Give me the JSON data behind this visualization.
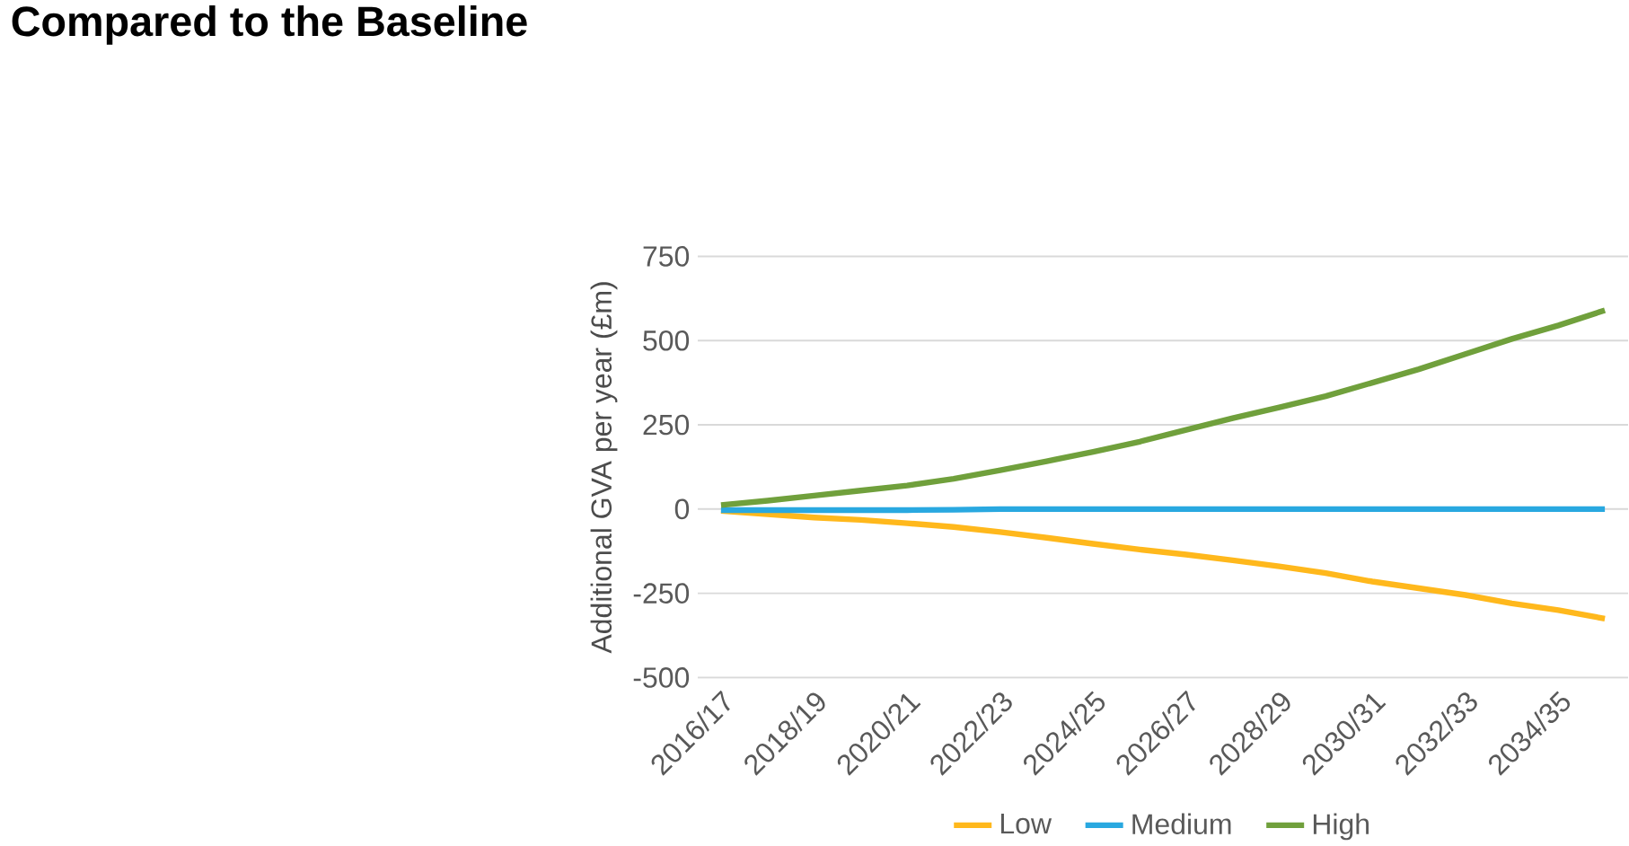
{
  "chart_data": {
    "type": "line",
    "title": "Compared to the Baseline",
    "ylabel": "Additional GVA per year (£m)",
    "categories": [
      "2016/17",
      null,
      "2018/19",
      null,
      "2020/21",
      null,
      "2022/23",
      null,
      "2024/25",
      null,
      "2026/27",
      null,
      "2028/29",
      null,
      "2030/31",
      null,
      "2032/33",
      null,
      "2034/35",
      null
    ],
    "series": [
      {
        "name": "Low",
        "color": "#ffb81c",
        "values": [
          -5,
          -15,
          -25,
          -32,
          -42,
          -53,
          -68,
          -85,
          -103,
          -120,
          -135,
          -152,
          -170,
          -190,
          -215,
          -235,
          -255,
          -280,
          -300,
          -325
        ]
      },
      {
        "name": "Medium",
        "color": "#29a8e0",
        "values": [
          -3,
          -3,
          -3,
          -3,
          -3,
          -2,
          0,
          0,
          0,
          0,
          0,
          0,
          0,
          0,
          0,
          0,
          0,
          0,
          0,
          0
        ]
      },
      {
        "name": "High",
        "color": "#70a03c",
        "values": [
          12,
          25,
          40,
          55,
          70,
          90,
          115,
          142,
          170,
          200,
          235,
          270,
          302,
          335,
          375,
          415,
          460,
          505,
          545,
          590
        ]
      }
    ],
    "ylim": [
      -500,
      750
    ],
    "yticks": [
      -500,
      -250,
      0,
      250,
      500,
      750
    ],
    "grid": "y",
    "legend": "bottom",
    "marker": "none",
    "line_style": "solid"
  }
}
